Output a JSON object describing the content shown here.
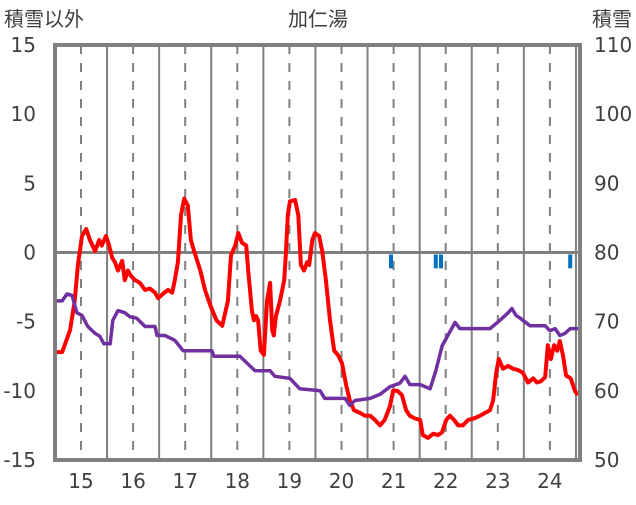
{
  "chart_data": {
    "type": "line",
    "title": "加仁湯",
    "ylabel_left": "積雪以外",
    "ylabel_right": "積雪",
    "xlim": [
      14.5,
      24.6
    ],
    "ylim_left": [
      -15,
      15
    ],
    "ylim_right": [
      50,
      110
    ],
    "x_ticks": [
      15,
      16,
      17,
      18,
      19,
      20,
      21,
      22,
      23,
      24
    ],
    "x_tick_labels": [
      "15",
      "16",
      "17",
      "18",
      "19",
      "20",
      "21",
      "22",
      "23",
      "24"
    ],
    "left_ticks": [
      15,
      10,
      5,
      0,
      -5,
      -10,
      -15
    ],
    "left_tick_labels": [
      "15",
      "10",
      "5",
      "0",
      "-5",
      "-10",
      "-15"
    ],
    "right_ticks": [
      110,
      100,
      90,
      80,
      70,
      60,
      50
    ],
    "right_tick_labels": [
      "110",
      "100",
      "90",
      "80",
      "70",
      "60",
      "50"
    ],
    "grid": "vertical",
    "colors": {
      "temperature": "#ff0000",
      "snow_depth": "#7030a0",
      "bars": "#0070c0",
      "frame": "#808080"
    },
    "series": [
      {
        "name": "red",
        "axis": "left",
        "color": "#ff0000",
        "points": [
          [
            14.5,
            -7.2
          ],
          [
            14.64,
            -7.2
          ],
          [
            14.79,
            -5.6
          ],
          [
            14.88,
            -3.5
          ],
          [
            14.94,
            -0.9
          ],
          [
            15.02,
            1.2
          ],
          [
            15.1,
            1.7
          ],
          [
            15.17,
            0.9
          ],
          [
            15.27,
            0.1
          ],
          [
            15.35,
            0.9
          ],
          [
            15.4,
            0.5
          ],
          [
            15.48,
            1.2
          ],
          [
            15.54,
            0.5
          ],
          [
            15.6,
            -0.4
          ],
          [
            15.65,
            -0.7
          ],
          [
            15.71,
            -1.3
          ],
          [
            15.79,
            -0.6
          ],
          [
            15.84,
            -2.0
          ],
          [
            15.9,
            -1.3
          ],
          [
            15.96,
            -1.7
          ],
          [
            16.04,
            -2.0
          ],
          [
            16.13,
            -2.2
          ],
          [
            16.23,
            -2.7
          ],
          [
            16.32,
            -2.6
          ],
          [
            16.42,
            -2.9
          ],
          [
            16.48,
            -3.3
          ],
          [
            16.57,
            -3.0
          ],
          [
            16.67,
            -2.7
          ],
          [
            16.75,
            -2.9
          ],
          [
            16.8,
            -2.0
          ],
          [
            16.86,
            -0.7
          ],
          [
            16.92,
            2.7
          ],
          [
            16.98,
            3.9
          ],
          [
            17.05,
            3.4
          ],
          [
            17.11,
            0.9
          ],
          [
            17.17,
            0.1
          ],
          [
            17.23,
            -0.6
          ],
          [
            17.29,
            -1.3
          ],
          [
            17.38,
            -2.7
          ],
          [
            17.48,
            -3.8
          ],
          [
            17.6,
            -4.9
          ],
          [
            17.71,
            -5.3
          ],
          [
            17.82,
            -3.5
          ],
          [
            17.88,
            -0.2
          ],
          [
            17.96,
            0.5
          ],
          [
            18.02,
            1.4
          ],
          [
            18.09,
            0.7
          ],
          [
            18.17,
            0.5
          ],
          [
            18.21,
            -1.3
          ],
          [
            18.28,
            -4.2
          ],
          [
            18.32,
            -4.9
          ],
          [
            18.36,
            -4.6
          ],
          [
            18.4,
            -4.9
          ],
          [
            18.45,
            -7.1
          ],
          [
            18.51,
            -7.4
          ],
          [
            18.57,
            -3.5
          ],
          [
            18.63,
            -2.2
          ],
          [
            18.67,
            -5.6
          ],
          [
            18.7,
            -6.0
          ],
          [
            18.74,
            -4.6
          ],
          [
            18.82,
            -3.5
          ],
          [
            18.9,
            -2.0
          ],
          [
            18.93,
            -0.2
          ],
          [
            18.97,
            2.7
          ],
          [
            19.01,
            3.7
          ],
          [
            19.11,
            3.8
          ],
          [
            19.17,
            2.7
          ],
          [
            19.22,
            -0.9
          ],
          [
            19.28,
            -1.3
          ],
          [
            19.34,
            -0.7
          ],
          [
            19.38,
            -0.9
          ],
          [
            19.44,
            0.9
          ],
          [
            19.49,
            1.4
          ],
          [
            19.57,
            1.2
          ],
          [
            19.63,
            0.1
          ],
          [
            19.7,
            -2.0
          ],
          [
            19.78,
            -4.9
          ],
          [
            19.86,
            -7.1
          ],
          [
            19.93,
            -7.4
          ],
          [
            20.01,
            -8.0
          ],
          [
            20.09,
            -9.6
          ],
          [
            20.16,
            -10.7
          ],
          [
            20.24,
            -11.4
          ],
          [
            20.36,
            -11.6
          ],
          [
            20.45,
            -11.8
          ],
          [
            20.55,
            -11.8
          ],
          [
            20.64,
            -12.1
          ],
          [
            20.74,
            -12.5
          ],
          [
            20.83,
            -12.1
          ],
          [
            20.93,
            -11.1
          ],
          [
            20.99,
            -10.0
          ],
          [
            21.07,
            -10.0
          ],
          [
            21.16,
            -10.3
          ],
          [
            21.24,
            -11.4
          ],
          [
            21.31,
            -11.8
          ],
          [
            21.41,
            -12.0
          ],
          [
            21.51,
            -12.1
          ],
          [
            21.56,
            -13.2
          ],
          [
            21.66,
            -13.4
          ],
          [
            21.76,
            -13.1
          ],
          [
            21.85,
            -13.2
          ],
          [
            21.93,
            -13.0
          ],
          [
            22.01,
            -12.1
          ],
          [
            22.08,
            -11.8
          ],
          [
            22.16,
            -12.1
          ],
          [
            22.24,
            -12.5
          ],
          [
            22.33,
            -12.5
          ],
          [
            22.43,
            -12.1
          ],
          [
            22.54,
            -12.0
          ],
          [
            22.66,
            -11.8
          ],
          [
            22.75,
            -11.6
          ],
          [
            22.85,
            -11.4
          ],
          [
            22.91,
            -10.7
          ],
          [
            22.97,
            -8.7
          ],
          [
            23.02,
            -7.7
          ],
          [
            23.1,
            -8.4
          ],
          [
            23.2,
            -8.2
          ],
          [
            23.29,
            -8.4
          ],
          [
            23.39,
            -8.5
          ],
          [
            23.48,
            -8.7
          ],
          [
            23.58,
            -9.4
          ],
          [
            23.68,
            -9.1
          ],
          [
            23.75,
            -9.4
          ],
          [
            23.83,
            -9.3
          ],
          [
            23.91,
            -9.0
          ],
          [
            23.96,
            -6.7
          ],
          [
            24.02,
            -7.7
          ],
          [
            24.08,
            -6.7
          ],
          [
            24.14,
            -7.1
          ],
          [
            24.19,
            -6.4
          ],
          [
            24.25,
            -7.4
          ],
          [
            24.31,
            -8.9
          ],
          [
            24.4,
            -9.1
          ],
          [
            24.48,
            -10.0
          ],
          [
            24.54,
            -10.3
          ]
        ]
      },
      {
        "name": "purple",
        "axis": "right",
        "color": "#7030a0",
        "points": [
          [
            14.5,
            73.0
          ],
          [
            14.64,
            73.0
          ],
          [
            14.73,
            74.0
          ],
          [
            14.83,
            73.8
          ],
          [
            14.92,
            71.3
          ],
          [
            15.02,
            70.9
          ],
          [
            15.13,
            69.3
          ],
          [
            15.27,
            68.3
          ],
          [
            15.36,
            67.9
          ],
          [
            15.44,
            66.8
          ],
          [
            15.56,
            66.8
          ],
          [
            15.61,
            70.2
          ],
          [
            15.71,
            71.6
          ],
          [
            15.84,
            71.3
          ],
          [
            15.94,
            70.7
          ],
          [
            16.07,
            70.5
          ],
          [
            16.23,
            69.3
          ],
          [
            16.42,
            69.3
          ],
          [
            16.46,
            68.0
          ],
          [
            16.61,
            68.0
          ],
          [
            16.8,
            67.3
          ],
          [
            16.96,
            65.8
          ],
          [
            17.13,
            65.8
          ],
          [
            17.51,
            65.8
          ],
          [
            17.55,
            65.0
          ],
          [
            18.05,
            65.0
          ],
          [
            18.34,
            62.9
          ],
          [
            18.63,
            62.9
          ],
          [
            18.72,
            62.1
          ],
          [
            19.01,
            61.8
          ],
          [
            19.2,
            60.3
          ],
          [
            19.59,
            60.0
          ],
          [
            19.68,
            58.9
          ],
          [
            20.07,
            58.9
          ],
          [
            20.16,
            57.9
          ],
          [
            20.26,
            58.6
          ],
          [
            20.55,
            58.9
          ],
          [
            20.74,
            59.5
          ],
          [
            20.93,
            60.6
          ],
          [
            21.12,
            61.1
          ],
          [
            21.22,
            62.1
          ],
          [
            21.31,
            60.9
          ],
          [
            21.51,
            60.9
          ],
          [
            21.7,
            60.3
          ],
          [
            21.81,
            62.9
          ],
          [
            21.93,
            66.5
          ],
          [
            22.04,
            68.0
          ],
          [
            22.18,
            69.9
          ],
          [
            22.27,
            69.0
          ],
          [
            22.85,
            69.0
          ],
          [
            23.04,
            70.2
          ],
          [
            23.2,
            71.3
          ],
          [
            23.27,
            71.9
          ],
          [
            23.35,
            70.9
          ],
          [
            23.43,
            70.5
          ],
          [
            23.62,
            69.4
          ],
          [
            23.91,
            69.4
          ],
          [
            24.0,
            68.7
          ],
          [
            24.1,
            69.0
          ],
          [
            24.19,
            68.0
          ],
          [
            24.29,
            68.3
          ],
          [
            24.39,
            69.0
          ],
          [
            24.54,
            69.0
          ]
        ]
      }
    ],
    "bars": {
      "axis": "left",
      "color": "#0070c0",
      "points": [
        [
          20.95,
          -1.0
        ],
        [
          21.81,
          -1.0
        ],
        [
          21.91,
          -1.0
        ],
        [
          24.39,
          -1.0
        ]
      ]
    }
  }
}
